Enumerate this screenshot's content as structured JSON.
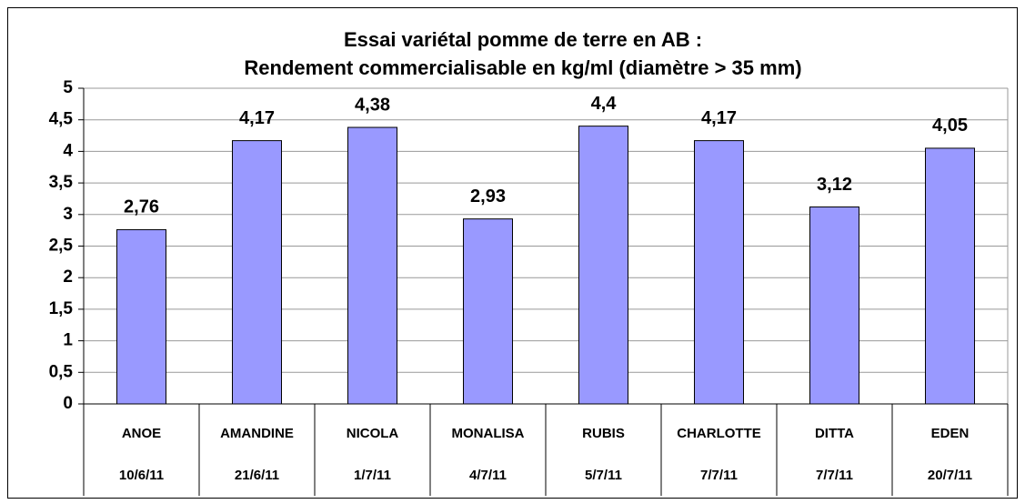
{
  "chart_data": {
    "type": "bar",
    "title": [
      "Essai variétal pomme de terre en AB :",
      "Rendement commercialisable en kg/ml (diamètre > 35 mm)"
    ],
    "categories": [
      "ANOE",
      "AMANDINE",
      "NICOLA",
      "MONALISA",
      "RUBIS",
      "CHARLOTTE",
      "DITTA",
      "EDEN"
    ],
    "dates": [
      "10/6/11",
      "21/6/11",
      "1/7/11",
      "4/7/11",
      "5/7/11",
      "7/7/11",
      "7/7/11",
      "20/7/11"
    ],
    "values": [
      2.76,
      4.17,
      4.38,
      2.93,
      4.4,
      4.17,
      3.12,
      4.05
    ],
    "value_labels": [
      "2,76",
      "4,17",
      "4,38",
      "2,93",
      "4,4",
      "4,17",
      "3,12",
      "4,05"
    ],
    "color": "#9999ff",
    "ylim": [
      0,
      5
    ],
    "yticks": [
      0,
      {
        "value": 0.5,
        "label": "0,5"
      },
      1,
      {
        "value": 1.5,
        "label": "1,5"
      },
      2,
      {
        "value": 2.5,
        "label": "2,5"
      },
      3,
      {
        "value": 3.5,
        "label": "3,5"
      },
      4,
      {
        "value": 4.5,
        "label": "4,5"
      },
      5
    ],
    "grid": true
  }
}
